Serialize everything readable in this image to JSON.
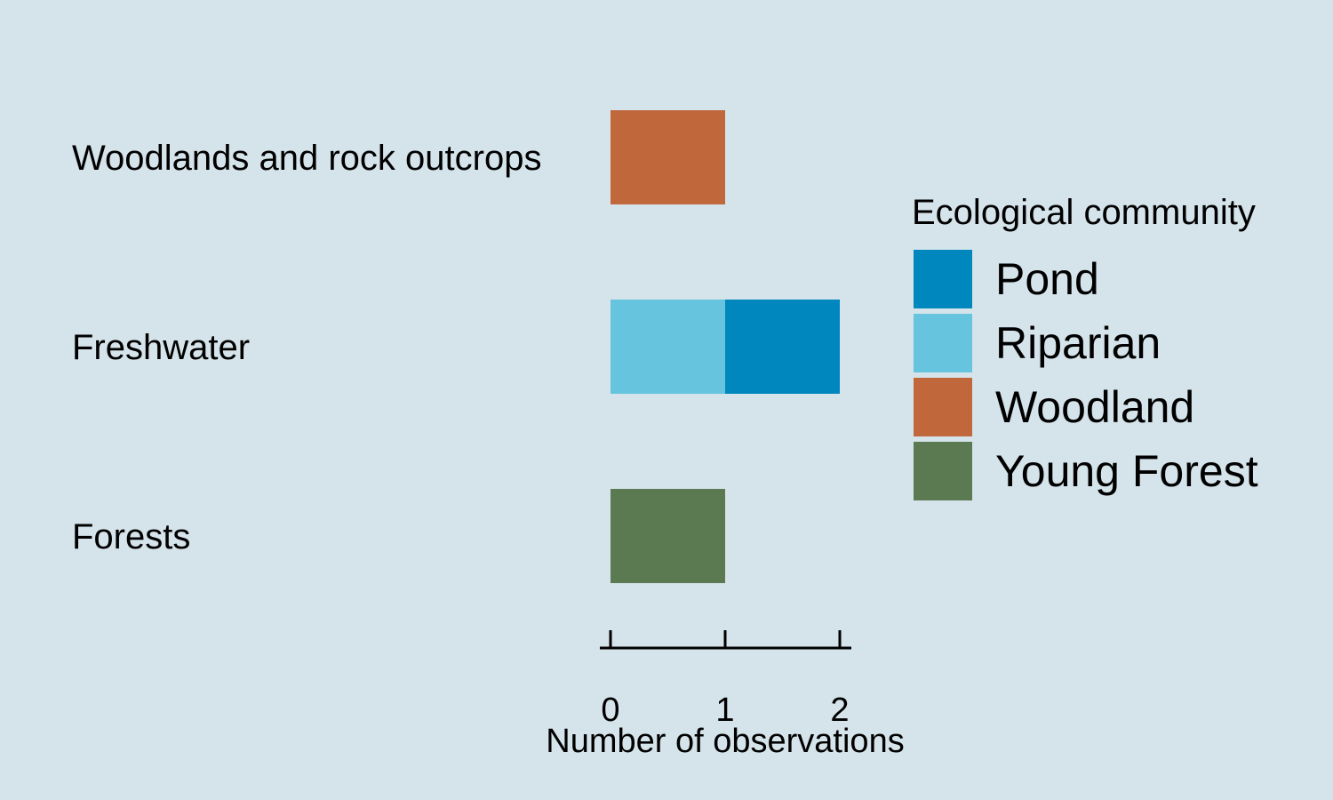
{
  "chart_data": {
    "type": "bar",
    "orientation": "horizontal",
    "stacked": true,
    "categories": [
      "Woodlands and rock outcrops",
      "Freshwater",
      "Forests"
    ],
    "series": [
      {
        "name": "Riparian",
        "color": "#66c4de",
        "values": [
          0,
          1,
          0
        ]
      },
      {
        "name": "Pond",
        "color": "#0087be",
        "values": [
          0,
          1,
          0
        ]
      },
      {
        "name": "Woodland",
        "color": "#c0673c",
        "values": [
          1,
          0,
          0
        ]
      },
      {
        "name": "Young Forest",
        "color": "#5b7a51",
        "values": [
          0,
          0,
          1
        ]
      }
    ],
    "xlabel": "Number of observations",
    "xlim": [
      0,
      2
    ],
    "xticks": [
      "0",
      "1",
      "2"
    ],
    "grid": false,
    "legend": {
      "title": "Ecological community",
      "placement": "right",
      "items": [
        {
          "label": "Pond",
          "color": "#0087be"
        },
        {
          "label": "Riparian",
          "color": "#66c4de"
        },
        {
          "label": "Woodland",
          "color": "#c0673c"
        },
        {
          "label": "Young Forest",
          "color": "#5b7a51"
        }
      ]
    }
  }
}
